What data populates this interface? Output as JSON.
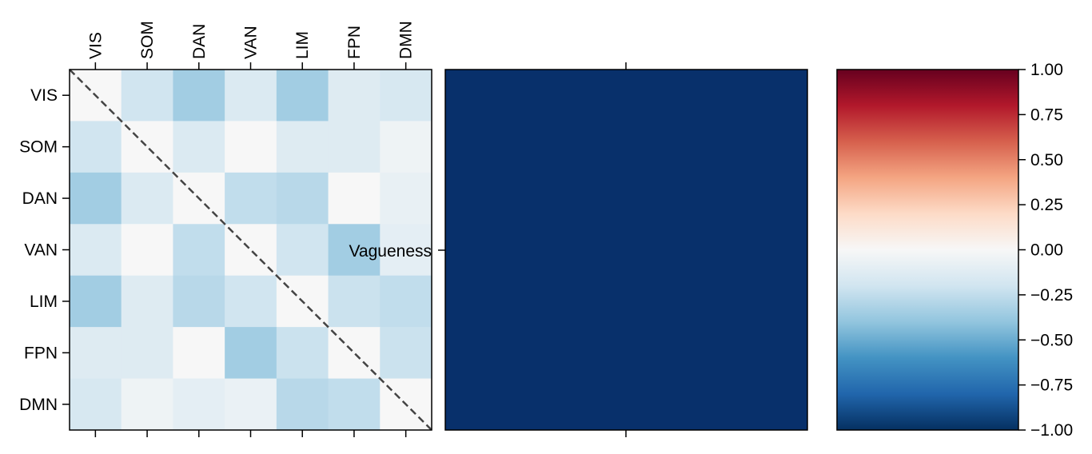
{
  "chart_data": [
    {
      "type": "heatmap",
      "networks": [
        "VIS",
        "SOM",
        "DAN",
        "VAN",
        "LIM",
        "FPN",
        "DMN"
      ],
      "matrix": [
        [
          0.0,
          -0.2,
          -0.35,
          -0.15,
          -0.35,
          -0.13,
          -0.17
        ],
        [
          -0.2,
          0.0,
          -0.15,
          0.0,
          -0.13,
          -0.13,
          -0.05
        ],
        [
          -0.35,
          -0.15,
          0.0,
          -0.25,
          -0.28,
          0.0,
          -0.08
        ],
        [
          -0.15,
          0.0,
          -0.25,
          0.0,
          -0.2,
          -0.35,
          -0.1
        ],
        [
          -0.35,
          -0.13,
          -0.28,
          -0.2,
          0.0,
          -0.22,
          -0.25
        ],
        [
          -0.13,
          -0.13,
          0.0,
          -0.35,
          -0.22,
          0.0,
          -0.22
        ],
        [
          -0.17,
          -0.05,
          -0.1,
          -0.07,
          -0.28,
          -0.25,
          0.0
        ]
      ],
      "diagonal_line": true,
      "annotation": "Vagueness"
    },
    {
      "type": "heatmap",
      "matrix": [
        [
          -1.0
        ]
      ],
      "color": "#08306b"
    }
  ],
  "colorbar": {
    "min": -1.0,
    "max": 1.0,
    "ticks": [
      "1.00",
      "0.75",
      "0.50",
      "0.25",
      "0.00",
      "−0.25",
      "−0.50",
      "−0.75",
      "−1.00"
    ],
    "tick_values": [
      1.0,
      0.75,
      0.5,
      0.25,
      0.0,
      -0.25,
      -0.5,
      -0.75,
      -1.0
    ],
    "colormap": [
      "#67001f",
      "#b2182b",
      "#d6604d",
      "#f4a582",
      "#fddbc7",
      "#f7f7f7",
      "#d1e5f0",
      "#92c5de",
      "#4393c3",
      "#2166ac",
      "#053061"
    ]
  }
}
